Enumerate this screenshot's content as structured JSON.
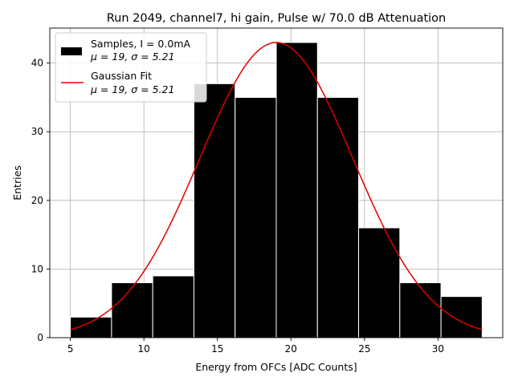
{
  "chart_data": {
    "type": "histogram",
    "title": "Run 2049, channel7, hi gain, Pulse w/ 70.0 dB Attenuation",
    "xlabel": "Energy from OFCs [ADC Counts]",
    "ylabel": "Entries",
    "xlim": [
      3.6,
      34.4
    ],
    "ylim": [
      0,
      45.1
    ],
    "xticks": [
      5,
      10,
      15,
      20,
      25,
      30
    ],
    "yticks": [
      0,
      10,
      20,
      30,
      40
    ],
    "grid": true,
    "legend_position": "top-left",
    "bins": [
      {
        "x0": 5.0,
        "x1": 7.8,
        "count": 3
      },
      {
        "x0": 7.8,
        "x1": 10.6,
        "count": 8
      },
      {
        "x0": 10.6,
        "x1": 13.4,
        "count": 9
      },
      {
        "x0": 13.4,
        "x1": 16.2,
        "count": 37
      },
      {
        "x0": 16.2,
        "x1": 19.0,
        "count": 35
      },
      {
        "x0": 19.0,
        "x1": 21.8,
        "count": 43
      },
      {
        "x0": 21.8,
        "x1": 24.6,
        "count": 35
      },
      {
        "x0": 24.6,
        "x1": 27.4,
        "count": 16
      },
      {
        "x0": 27.4,
        "x1": 30.2,
        "count": 8
      },
      {
        "x0": 30.2,
        "x1": 33.0,
        "count": 6
      }
    ],
    "fit": {
      "type": "gaussian",
      "amplitude": 43,
      "mu": 19,
      "sigma": 5.21,
      "x_range": [
        5,
        33
      ],
      "color": "#e00000"
    },
    "series": [
      {
        "name": "Samples, I = 0.0mA",
        "stats": "μ = 19, σ = 5.21",
        "color": "#000000",
        "kind": "histogram"
      },
      {
        "name": "Gaussian Fit",
        "stats": "μ = 19, σ = 5.21",
        "color": "#e00000",
        "kind": "line"
      }
    ]
  }
}
